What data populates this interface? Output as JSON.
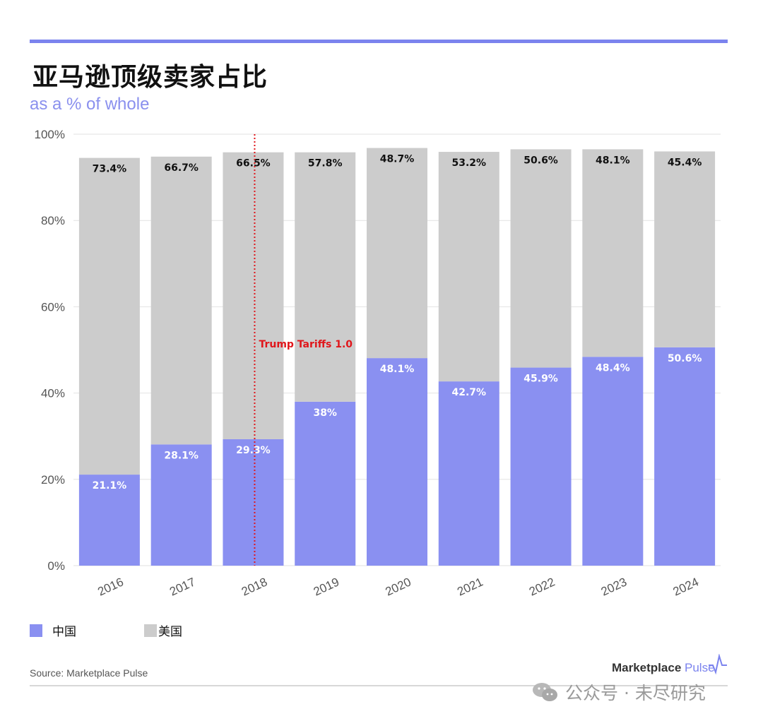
{
  "header": {
    "title": "亚马逊顶级卖家占比",
    "subtitle": "as a % of whole"
  },
  "chart_data": {
    "type": "bar",
    "stacked": true,
    "categories": [
      "2016",
      "2017",
      "2018",
      "2019",
      "2020",
      "2021",
      "2022",
      "2023",
      "2024"
    ],
    "series": [
      {
        "name": "中国",
        "color": "#8a90f1",
        "values": [
          21.1,
          28.1,
          29.3,
          38,
          48.1,
          42.7,
          45.9,
          48.4,
          50.6
        ],
        "labels": [
          "21.1%",
          "28.1%",
          "29.3%",
          "38%",
          "48.1%",
          "42.7%",
          "45.9%",
          "48.4%",
          "50.6%"
        ]
      },
      {
        "name": "美国",
        "color": "#cccccc",
        "values": [
          73.4,
          66.7,
          66.5,
          57.8,
          48.7,
          53.2,
          50.6,
          48.1,
          45.4
        ],
        "labels": [
          "73.4%",
          "66.7%",
          "66.5%",
          "57.8%",
          "48.7%",
          "53.2%",
          "50.6%",
          "48.1%",
          "45.4%"
        ]
      }
    ],
    "ylim": [
      0,
      100
    ],
    "yticks": [
      0,
      20,
      40,
      60,
      80,
      100
    ],
    "ytick_labels": [
      "0%",
      "20%",
      "40%",
      "60%",
      "80%",
      "100%"
    ],
    "grid": true,
    "legend_position": "bottom-left",
    "annotation": {
      "text": "Trump Tariffs 1.0",
      "at_category": "2018",
      "color": "#e0161b"
    }
  },
  "footer": {
    "source": "Source: Marketplace Pulse",
    "brand_main": "Marketplace",
    "brand_accent": "Pulse",
    "watermark": "公众号 · 未尽研究"
  }
}
